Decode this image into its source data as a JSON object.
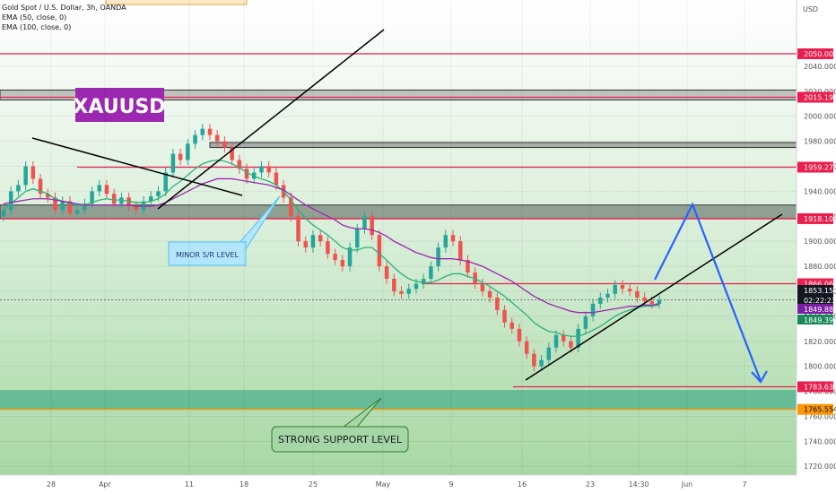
{
  "header": {
    "symbol_line": "Gold Spot / U.S. Dollar, 3h, OANDA",
    "ema1_line": "EMA (50, close, 0)",
    "ema2_line": "EMA (100, close, 0)",
    "currency": "USD"
  },
  "ticker_label": "XAUUSD",
  "annotations": {
    "minor": "MINOR S/R LEVEL",
    "strong": "STRONG SUPPORT LEVEL"
  },
  "colors": {
    "up": "#26a69a",
    "down": "#ef5350",
    "ema50": "#2bb37c",
    "ema100": "#9c27b0",
    "level_line": "#e91e4d",
    "projection": "#2962ff",
    "zone_fill": "#4caf8c",
    "ticker_bg": "#9c27b0"
  },
  "chart_data": {
    "type": "line",
    "title": "Gold Spot / U.S. Dollar, 3h, OANDA",
    "ylabel": "USD",
    "ylim": [
      1713,
      2093
    ],
    "x_ticks": [
      "28",
      "Apr",
      "11",
      "18",
      "25",
      "May",
      "9",
      "16",
      "23",
      "14:30",
      "Jun",
      "7"
    ],
    "y_ticks": [
      1720,
      1740,
      1760,
      1780,
      1800,
      1820,
      1840,
      1860,
      1880,
      1900,
      1920,
      1940,
      1960,
      1980,
      2000,
      2020,
      2040
    ],
    "series": [
      {
        "name": "Price",
        "close": [
          1925,
          1940,
          1945,
          1960,
          1950,
          1938,
          1935,
          1925,
          1932,
          1922,
          1925,
          1930,
          1940,
          1945,
          1938,
          1930,
          1935,
          1928,
          1925,
          1932,
          1936,
          1940,
          1955,
          1970,
          1965,
          1978,
          1985,
          1990,
          1985,
          1980,
          1975,
          1965,
          1958,
          1950,
          1955,
          1960,
          1955,
          1945,
          1935,
          1920,
          1900,
          1895,
          1905,
          1900,
          1890,
          1885,
          1880,
          1895,
          1910,
          1920,
          1905,
          1880,
          1870,
          1860,
          1858,
          1862,
          1866,
          1870,
          1880,
          1895,
          1905,
          1900,
          1885,
          1875,
          1866,
          1860,
          1855,
          1845,
          1835,
          1830,
          1820,
          1810,
          1800,
          1805,
          1815,
          1825,
          1820,
          1815,
          1830,
          1840,
          1850,
          1855,
          1858,
          1865,
          1862,
          1860,
          1855,
          1852,
          1850,
          1853
        ],
        "open": [
          1920,
          1925,
          1940,
          1945,
          1960,
          1950,
          1938,
          1935,
          1925,
          1932,
          1922,
          1925,
          1930,
          1940,
          1945,
          1938,
          1930,
          1935,
          1928,
          1925,
          1932,
          1936,
          1940,
          1955,
          1970,
          1965,
          1978,
          1985,
          1990,
          1985,
          1980,
          1975,
          1965,
          1958,
          1950,
          1955,
          1960,
          1955,
          1945,
          1935,
          1920,
          1900,
          1895,
          1905,
          1900,
          1890,
          1885,
          1880,
          1895,
          1910,
          1920,
          1905,
          1880,
          1870,
          1860,
          1858,
          1862,
          1866,
          1870,
          1880,
          1895,
          1905,
          1900,
          1885,
          1875,
          1866,
          1860,
          1855,
          1845,
          1835,
          1830,
          1820,
          1810,
          1800,
          1805,
          1815,
          1825,
          1820,
          1815,
          1830,
          1840,
          1850,
          1855,
          1858,
          1865,
          1862,
          1860,
          1855,
          1852,
          1850
        ]
      },
      {
        "name": "EMA (50, close, 0)",
        "values": [
          1925,
          1930,
          1935,
          1940,
          1942,
          1940,
          1938,
          1934,
          1932,
          1930,
          1929,
          1929,
          1931,
          1933,
          1934,
          1933,
          1933,
          1932,
          1931,
          1931,
          1932,
          1934,
          1938,
          1944,
          1948,
          1953,
          1958,
          1962,
          1964,
          1965,
          1964,
          1962,
          1959,
          1955,
          1952,
          1950,
          1948,
          1945,
          1940,
          1933,
          1925,
          1918,
          1913,
          1909,
          1905,
          1900,
          1895,
          1893,
          1893,
          1895,
          1895,
          1890,
          1885,
          1879,
          1874,
          1870,
          1868,
          1867,
          1867,
          1869,
          1872,
          1874,
          1874,
          1872,
          1870,
          1867,
          1864,
          1860,
          1856,
          1851,
          1846,
          1841,
          1835,
          1831,
          1828,
          1827,
          1825,
          1824,
          1824,
          1826,
          1829,
          1832,
          1836,
          1840,
          1843,
          1845,
          1847,
          1848,
          1848,
          1849
        ]
      },
      {
        "name": "EMA (100, close, 0)",
        "values": [
          1930,
          1931,
          1932,
          1933,
          1934,
          1934,
          1934,
          1933,
          1932,
          1931,
          1930,
          1929,
          1929,
          1929,
          1929,
          1929,
          1929,
          1929,
          1928,
          1928,
          1928,
          1929,
          1931,
          1934,
          1937,
          1940,
          1943,
          1946,
          1948,
          1950,
          1950,
          1950,
          1949,
          1948,
          1947,
          1946,
          1945,
          1943,
          1941,
          1937,
          1933,
          1929,
          1926,
          1923,
          1920,
          1917,
          1913,
          1911,
          1910,
          1910,
          1909,
          1907,
          1904,
          1900,
          1897,
          1894,
          1891,
          1889,
          1887,
          1886,
          1886,
          1886,
          1885,
          1884,
          1882,
          1880,
          1877,
          1874,
          1871,
          1868,
          1864,
          1860,
          1856,
          1853,
          1850,
          1848,
          1846,
          1844,
          1843,
          1843,
          1843,
          1844,
          1845,
          1846,
          1847,
          1848,
          1848,
          1849,
          1849,
          1850
        ]
      }
    ],
    "levels": [
      2050.0,
      2015.198,
      1959.278,
      1918.1,
      1866.06,
      1783.632,
      1765.554
    ],
    "level_labels": [
      "2050.000",
      "2015.198",
      "1959.278",
      "1918.100",
      "1866.060",
      "1783.632",
      "1765.554"
    ],
    "price_tags": [
      "1853.150",
      "02:22:23",
      "1849.881",
      "1849.396"
    ]
  }
}
